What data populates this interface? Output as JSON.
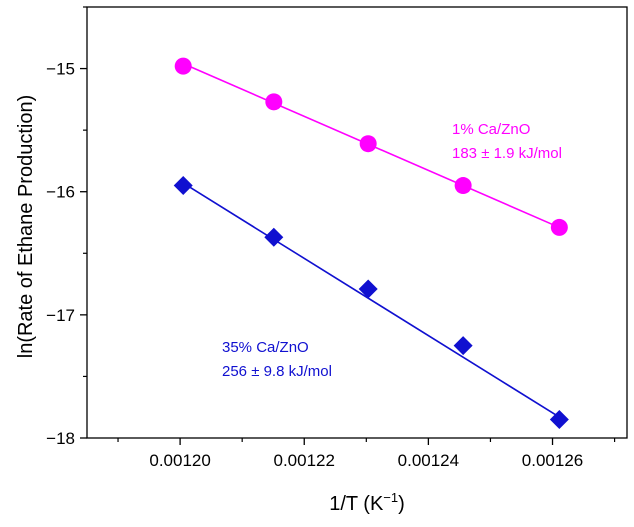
{
  "chart_data": {
    "type": "scatter",
    "xlabel": "1/T (K",
    "xlabel_superscript": "−1",
    "xlabel_suffix": ")",
    "ylabel": "ln(Rate of Ethane Production)",
    "xlim": [
      0.001185,
      0.001272
    ],
    "ylim": [
      -18.0,
      -14.5
    ],
    "xticks": [
      0.0012,
      0.00122,
      0.00124,
      0.00126
    ],
    "xtick_labels": [
      "0.00120",
      "0.00122",
      "0.00124",
      "0.00126"
    ],
    "yticks": [
      -18,
      -17,
      -16,
      -15
    ],
    "ytick_labels": [
      "−18",
      "−17",
      "−16",
      "−15"
    ],
    "series": [
      {
        "name": "1% Ca/ZnO",
        "marker": "circle",
        "color": "#ff00ff",
        "x": [
          0.0012005,
          0.0012151,
          0.0012303,
          0.0012456,
          0.0012611
        ],
        "y": [
          -14.98,
          -15.27,
          -15.61,
          -15.95,
          -16.29
        ],
        "fit": {
          "x": [
            0.0012005,
            0.0012611
          ],
          "y": [
            -14.96,
            -16.29
          ]
        },
        "annotation": {
          "name": "1% Ca/ZnO",
          "value": "183 ± 1.9 kJ/mol"
        }
      },
      {
        "name": "35% Ca/ZnO",
        "marker": "diamond",
        "color": "#1010d0",
        "x": [
          0.0012005,
          0.0012151,
          0.0012303,
          0.0012456,
          0.0012611
        ],
        "y": [
          -15.95,
          -16.37,
          -16.79,
          -17.25,
          -17.85
        ],
        "fit": {
          "x": [
            0.0012005,
            0.0012611
          ],
          "y": [
            -15.93,
            -17.83
          ]
        },
        "annotation": {
          "name": "35% Ca/ZnO",
          "value": "256 ± 9.8 kJ/mol"
        }
      }
    ]
  }
}
